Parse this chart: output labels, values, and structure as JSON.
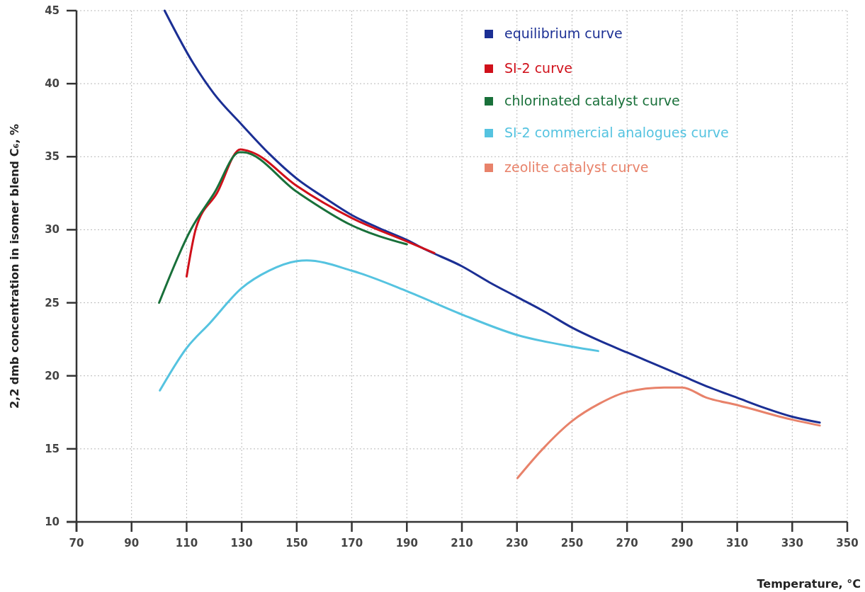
{
  "chart_data": {
    "type": "line",
    "xlabel": "Temperature, °C",
    "ylabel": "2,2 dmb concentration in isomer blend C₆, %",
    "xlim": [
      70,
      350
    ],
    "xticks": [
      70,
      90,
      110,
      130,
      150,
      170,
      190,
      210,
      230,
      250,
      270,
      290,
      310,
      330,
      350
    ],
    "ylim": [
      10,
      45
    ],
    "yticks": [
      10,
      15,
      20,
      25,
      30,
      35,
      40,
      45
    ],
    "grid": true,
    "legend": "top right",
    "marker": "none",
    "line_style": "solid",
    "series": [
      {
        "name": "equilibrium curve",
        "color": "#1b2f94",
        "x": [
          102,
          112.4,
          120,
          130,
          140,
          150,
          160,
          170,
          180,
          190,
          196.7,
          210,
          220,
          230,
          240,
          250,
          260,
          270,
          280,
          290,
          300,
          310,
          320,
          330,
          340
        ],
        "values": [
          45,
          41.4,
          39.3,
          37.2,
          35.2,
          33.5,
          32.2,
          31.0,
          30.1,
          29.3,
          28.65,
          27.5,
          26.4,
          25.4,
          24.4,
          23.3,
          22.4,
          21.6,
          20.8,
          20.0,
          19.2,
          18.5,
          17.8,
          17.2,
          16.8
        ]
      },
      {
        "name": "SI-2 curve",
        "color": "#d0101a",
        "x": [
          110,
          113.4,
          121,
          129.5,
          133.8,
          150,
          170,
          190,
          200
        ],
        "values": [
          26.8,
          30.1,
          32.5,
          35.5,
          35.3,
          33.0,
          30.8,
          29.2,
          28.4
        ]
      },
      {
        "name": "chlorinated catalyst curve",
        "color": "#19703a",
        "x": [
          100,
          111.5,
          120,
          129.2,
          130.4,
          150,
          170,
          190
        ],
        "values": [
          25,
          30,
          32.5,
          35.3,
          35.3,
          32.6,
          30.3,
          29.0
        ]
      },
      {
        "name": "SI-2 commercial analogues curve",
        "color": "#55c3e0",
        "x": [
          100.3,
          110,
          118.4,
          130,
          140,
          150,
          153.6,
          170,
          190,
          210,
          230,
          250,
          259.5
        ],
        "values": [
          19.0,
          21.9,
          23.6,
          26.0,
          27.2,
          27.85,
          27.9,
          27.2,
          25.8,
          24.2,
          22.8,
          22.0,
          21.7
        ]
      },
      {
        "name": "zeolite catalyst curve",
        "color": "#e8826a",
        "x": [
          230.2,
          239.4,
          250,
          260,
          270,
          283.5,
          290,
          298.9,
          310,
          330,
          340
        ],
        "values": [
          13.0,
          15.0,
          16.9,
          18.1,
          18.9,
          19.2,
          19.2,
          18.5,
          18.0,
          17.0,
          16.6
        ]
      }
    ]
  }
}
